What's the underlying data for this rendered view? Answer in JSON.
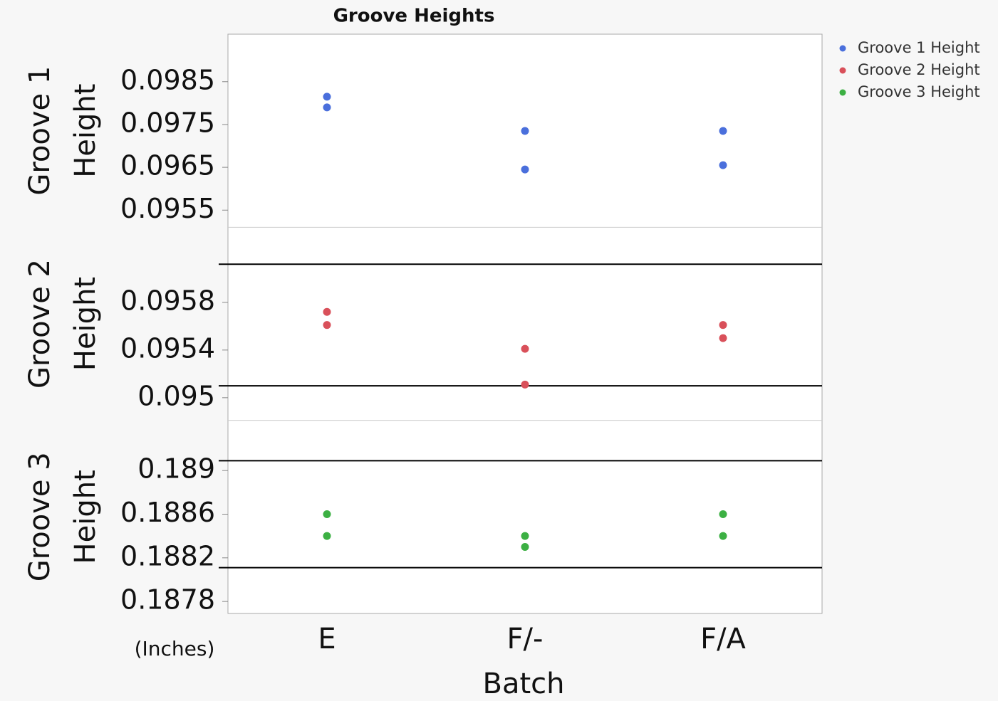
{
  "chart_data": {
    "type": "scatter",
    "title": "Groove Heights",
    "x_label": "Batch",
    "unit_note": "(Inches)",
    "categories": [
      "E",
      "F/-",
      "F/A"
    ],
    "panels": [
      {
        "ylabel_lines": [
          "Groove 1",
          "Height"
        ],
        "name": "Groove 1 Height",
        "color": "#4a6fdc",
        "ylim": [
          0.0951,
          0.09961
        ],
        "yticks": [
          0.0955,
          0.0965,
          0.0975,
          0.0985
        ],
        "reference_lines": [],
        "values": [
          [
            0.09815,
            0.0979
          ],
          [
            0.09735,
            0.09645
          ],
          [
            0.09735,
            0.09655
          ]
        ]
      },
      {
        "ylabel_lines": [
          "Groove 2",
          "Height"
        ],
        "name": "Groove 2 Height",
        "color": "#d9505a",
        "ylim": [
          0.09481,
          0.09643
        ],
        "yticks": [
          0.095,
          0.0954,
          0.0958
        ],
        "reference_lines": [
          0.09612,
          0.0951
        ],
        "values": [
          [
            0.09572,
            0.09561
          ],
          [
            0.09541,
            0.09511
          ],
          [
            0.09561,
            0.0955
          ]
        ]
      },
      {
        "ylabel_lines": [
          "Groove 3",
          "Height"
        ],
        "name": "Groove 3 Height",
        "color": "#3cb043",
        "ylim": [
          0.18769,
          0.18946
        ],
        "yticks": [
          0.1878,
          0.1882,
          0.1886,
          0.189
        ],
        "reference_lines": [
          0.18909,
          0.18811
        ],
        "values": [
          [
            0.1886,
            0.1884
          ],
          [
            0.1884,
            0.1883
          ],
          [
            0.1886,
            0.1884
          ]
        ]
      }
    ]
  }
}
